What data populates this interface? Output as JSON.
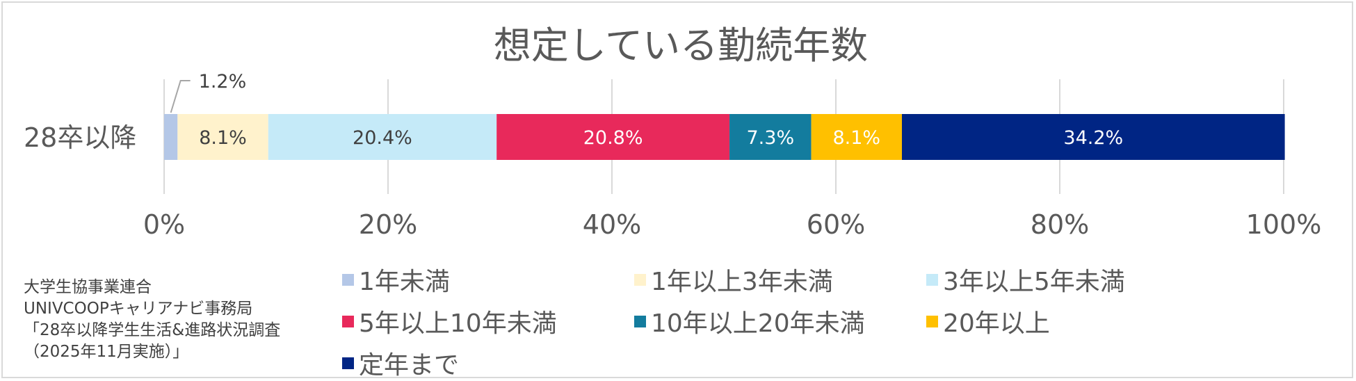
{
  "chart_data": {
    "type": "stacked-bar-horizontal",
    "title": "想定している勤続年数",
    "categories": [
      "28卒以降"
    ],
    "xlim": [
      0,
      100
    ],
    "x_ticks": [
      "0%",
      "20%",
      "40%",
      "60%",
      "80%",
      "100%"
    ],
    "grid": true,
    "legend_position": "bottom",
    "series": [
      {
        "name": "1年未満",
        "values": [
          1.2
        ],
        "label": "1.2%",
        "color": "#b4c7e7",
        "label_color": "#404040"
      },
      {
        "name": "1年以上3年未満",
        "values": [
          8.1
        ],
        "label": "8.1%",
        "color": "#fff2cc",
        "label_color": "#404040"
      },
      {
        "name": "3年以上5年未満",
        "values": [
          20.4
        ],
        "label": "20.4%",
        "color": "#c5eaf8",
        "label_color": "#404040"
      },
      {
        "name": "5年以上10年未満",
        "values": [
          20.8
        ],
        "label": "20.8%",
        "color": "#e8295b",
        "label_color": "#ffffff"
      },
      {
        "name": "10年以上20年未満",
        "values": [
          7.3
        ],
        "label": "7.3%",
        "color": "#137c9e",
        "label_color": "#ffffff"
      },
      {
        "name": "20年以上",
        "values": [
          8.1
        ],
        "label": "8.1%",
        "color": "#ffc000",
        "label_color": "#ffffff"
      },
      {
        "name": "定年まで",
        "values": [
          34.2
        ],
        "label": "34.2%",
        "color": "#002584",
        "label_color": "#ffffff"
      }
    ]
  },
  "source_lines": [
    "大学生協事業連合",
    "UNIVCOOPキャリアナビ事務局",
    "「28卒以降学生生活&進路状況調査",
    "（2025年11月実施）」"
  ]
}
